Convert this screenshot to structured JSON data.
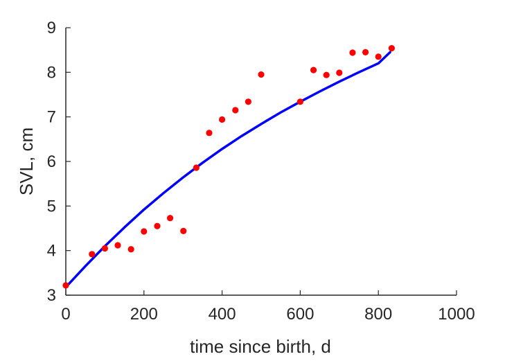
{
  "chart_data": {
    "type": "scatter",
    "title": "",
    "xlabel": "time since birth, d",
    "ylabel": "SVL, cm",
    "xlim": [
      0,
      1000
    ],
    "ylim": [
      3,
      9
    ],
    "xticks": [
      0,
      200,
      400,
      600,
      800,
      1000
    ],
    "yticks": [
      3,
      4,
      5,
      6,
      7,
      8,
      9
    ],
    "xtick_labels": [
      "0",
      "200",
      "400",
      "600",
      "800",
      "1000"
    ],
    "ytick_labels": [
      "3",
      "4",
      "5",
      "6",
      "7",
      "8",
      "9"
    ],
    "grid": false,
    "legend": "none",
    "colors": {
      "axis": "#262626",
      "points": "#ff0000",
      "fit": "#0000ff"
    },
    "series": [
      {
        "type": "scatter",
        "x": [
          0,
          67,
          100,
          133,
          167,
          200,
          234,
          267,
          301,
          334,
          367,
          400,
          434,
          467,
          500,
          600,
          634,
          667,
          700,
          734,
          767,
          800,
          834
        ],
        "y": [
          3.22,
          3.92,
          4.05,
          4.12,
          4.03,
          4.43,
          4.55,
          4.73,
          4.44,
          5.86,
          6.64,
          6.94,
          7.15,
          7.34,
          7.95,
          7.34,
          8.05,
          7.94,
          7.99,
          8.44,
          8.45,
          8.35,
          8.54
        ]
      },
      {
        "type": "line",
        "x": [
          0,
          50,
          100,
          150,
          200,
          250,
          300,
          350,
          400,
          450,
          500,
          550,
          600,
          650,
          700,
          750,
          800,
          830
        ],
        "y": [
          3.18,
          3.65,
          4.1,
          4.52,
          4.92,
          5.29,
          5.64,
          5.97,
          6.28,
          6.57,
          6.84,
          7.1,
          7.34,
          7.57,
          7.79,
          8.0,
          8.2,
          8.45
        ]
      }
    ]
  }
}
